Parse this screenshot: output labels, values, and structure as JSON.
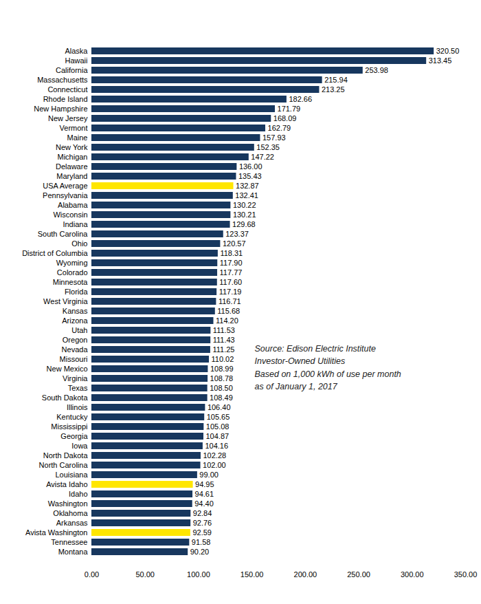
{
  "chart_data": {
    "type": "bar",
    "orientation": "horizontal",
    "categories": [
      "Alaska",
      "Hawaii",
      "California",
      "Massachusetts",
      "Connecticut",
      "Rhode Island",
      "New Hampshire",
      "New Jersey",
      "Vermont",
      "Maine",
      "New York",
      "Michigan",
      "Delaware",
      "Maryland",
      "USA Average",
      "Pennsylvania",
      "Alabama",
      "Wisconsin",
      "Indiana",
      "South Carolina",
      "Ohio",
      "District of Columbia",
      "Wyoming",
      "Colorado",
      "Minnesota",
      "Florida",
      "West Virginia",
      "Kansas",
      "Arizona",
      "Utah",
      "Oregon",
      "Nevada",
      "Missouri",
      "New Mexico",
      "Virginia",
      "Texas",
      "South Dakota",
      "Illinois",
      "Kentucky",
      "Mississippi",
      "Georgia",
      "Iowa",
      "North Dakota",
      "North Carolina",
      "Louisiana",
      "Avista Idaho",
      "Idaho",
      "Washington",
      "Oklahoma",
      "Arkansas",
      "Avista Washington",
      "Tennessee",
      "Montana"
    ],
    "values": [
      320.5,
      313.45,
      253.98,
      215.94,
      213.25,
      182.66,
      171.79,
      168.09,
      162.79,
      157.93,
      152.35,
      147.22,
      136,
      135.43,
      132.87,
      132.41,
      130.22,
      130.21,
      129.68,
      123.37,
      120.57,
      118.31,
      117.9,
      117.77,
      117.6,
      117.19,
      116.71,
      115.68,
      114.2,
      111.53,
      111.43,
      111.25,
      110.02,
      108.99,
      108.78,
      108.5,
      108.49,
      106.4,
      105.65,
      105.08,
      104.87,
      104.16,
      102.28,
      102,
      99,
      94.95,
      94.61,
      94.4,
      92.84,
      92.76,
      92.59,
      91.58,
      90.2
    ],
    "value_labels": [
      "320.50",
      "313.45",
      "253.98",
      "215.94",
      "213.25",
      "182.66",
      "171.79",
      "168.09",
      "162.79",
      "157.93",
      "152.35",
      "147.22",
      "136.00",
      "135.43",
      "132.87",
      "132.41",
      "130.22",
      "130.21",
      "129.68",
      "123.37",
      "120.57",
      "118.31",
      "117.90",
      "117.77",
      "117.60",
      "117.19",
      "116.71",
      "115.68",
      "114.20",
      "111.53",
      "111.43",
      "111.25",
      "110.02",
      "108.99",
      "108.78",
      "108.50",
      "108.49",
      "106.40",
      "105.65",
      "105.08",
      "104.87",
      "104.16",
      "102.28",
      "102.00",
      "99.00",
      "94.95",
      "94.61",
      "94.40",
      "92.84",
      "92.76",
      "92.59",
      "91.58",
      "90.20"
    ],
    "colors": [
      "#17375e",
      "#17375e",
      "#17375e",
      "#17375e",
      "#17375e",
      "#17375e",
      "#17375e",
      "#17375e",
      "#17375e",
      "#17375e",
      "#17375e",
      "#17375e",
      "#17375e",
      "#17375e",
      "#ffe600",
      "#17375e",
      "#17375e",
      "#17375e",
      "#17375e",
      "#17375e",
      "#17375e",
      "#17375e",
      "#17375e",
      "#17375e",
      "#17375e",
      "#17375e",
      "#17375e",
      "#17375e",
      "#17375e",
      "#17375e",
      "#17375e",
      "#17375e",
      "#17375e",
      "#17375e",
      "#17375e",
      "#17375e",
      "#17375e",
      "#17375e",
      "#17375e",
      "#17375e",
      "#17375e",
      "#17375e",
      "#17375e",
      "#17375e",
      "#17375e",
      "#ffe600",
      "#17375e",
      "#17375e",
      "#17375e",
      "#17375e",
      "#ffe600",
      "#17375e",
      "#17375e"
    ],
    "data_labels": true,
    "xlim": [
      0,
      350
    ],
    "xticks": [
      {
        "value": 0,
        "label": "0.00"
      },
      {
        "value": 50,
        "label": "50.00"
      },
      {
        "value": 100,
        "label": "100.00"
      },
      {
        "value": 150,
        "label": "150.00"
      },
      {
        "value": 200,
        "label": "200.00"
      },
      {
        "value": 250,
        "label": "250.00"
      },
      {
        "value": 300,
        "label": "300.00"
      },
      {
        "value": 350,
        "label": "350.00"
      }
    ],
    "grid": false,
    "annotations": [
      "Source: Edison Electric Institute",
      "Investor-Owned Utilities",
      "Based on 1,000 kWh of use per month",
      "as of January 1, 2017"
    ]
  }
}
